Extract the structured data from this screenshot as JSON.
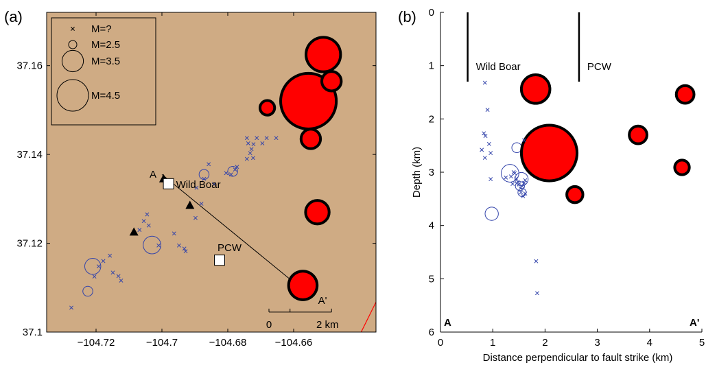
{
  "chart_data": [
    {
      "panel_label": "(a)",
      "type": "scatter",
      "title": "",
      "xlabel": "",
      "ylabel": "",
      "xlim": [
        -104.735,
        -104.635
      ],
      "ylim": [
        37.1,
        37.172
      ],
      "background_color": "#cfab84",
      "xticks": [
        -104.72,
        -104.7,
        -104.68,
        -104.66
      ],
      "xtick_labels": [
        "−104.72",
        "−104.7",
        "−104.68",
        "−104.66"
      ],
      "yticks": [
        37.1,
        37.12,
        37.14,
        37.16
      ],
      "ytick_labels": [
        "37.1",
        "37.12",
        "37.14",
        "37.16"
      ],
      "legend": {
        "placement": "top-left",
        "entries": [
          {
            "label": "M=?",
            "marker": "x"
          },
          {
            "label": "M=2.5",
            "marker": "circle",
            "magnitude": 2.5
          },
          {
            "label": "M=3.5",
            "marker": "circle",
            "magnitude": 3.5
          },
          {
            "label": "M=4.5",
            "marker": "circle",
            "magnitude": 4.5
          }
        ]
      },
      "wells": [
        {
          "label": "Wild Boar",
          "x": -104.698,
          "y": 37.1334
        },
        {
          "label": "PCW",
          "x": -104.6825,
          "y": 37.1162
        }
      ],
      "stations": [
        {
          "x": -104.7085,
          "y": 37.1225
        },
        {
          "x": -104.6995,
          "y": 37.1345
        },
        {
          "x": -104.6915,
          "y": 37.1285
        }
      ],
      "cross_section": {
        "start_label": "A",
        "end_label": "A'",
        "x": [
          -104.7,
          -104.6555
        ],
        "y": [
          37.1355,
          37.1085
        ]
      },
      "fault_trace": {
        "color": "#ff0000",
        "x": [
          -104.6395,
          -104.6345
        ],
        "y": [
          37.1,
          37.1075
        ]
      },
      "scale_bar": {
        "tick_labels": [
          "0",
          "2 km"
        ],
        "y": 37.1045,
        "x_start": -104.6675,
        "x_mid": -104.6611,
        "x_end": -104.6485
      },
      "series": [
        {
          "name": "M=?",
          "marker": "x",
          "color": "#3344aa",
          "points": [
            [
              -104.7275,
              37.1055
            ],
            [
              -104.7205,
              37.1125
            ],
            [
              -104.7192,
              37.1148
            ],
            [
              -104.7178,
              37.116
            ],
            [
              -104.7158,
              37.1172
            ],
            [
              -104.7149,
              37.1134
            ],
            [
              -104.7132,
              37.1126
            ],
            [
              -104.7124,
              37.1116
            ],
            [
              -104.7068,
              37.123
            ],
            [
              -104.7055,
              37.125
            ],
            [
              -104.7045,
              37.1265
            ],
            [
              -104.704,
              37.124
            ],
            [
              -104.701,
              37.1195
            ],
            [
              -104.6963,
              37.1222
            ],
            [
              -104.6948,
              37.1195
            ],
            [
              -104.6932,
              37.1188
            ],
            [
              -104.6928,
              37.1182
            ],
            [
              -104.6898,
              37.1257
            ],
            [
              -104.688,
              37.1289
            ],
            [
              -104.6895,
              37.1325
            ],
            [
              -104.6872,
              37.1345
            ],
            [
              -104.6858,
              37.1378
            ],
            [
              -104.6842,
              37.1333
            ],
            [
              -104.6805,
              37.1358
            ],
            [
              -104.679,
              37.1355
            ],
            [
              -104.6778,
              37.1366
            ],
            [
              -104.6772,
              37.1372
            ],
            [
              -104.6742,
              37.139
            ],
            [
              -104.6732,
              37.1403
            ],
            [
              -104.6728,
              37.1412
            ],
            [
              -104.6738,
              37.1425
            ],
            [
              -104.6722,
              37.1423
            ],
            [
              -104.6723,
              37.1392
            ],
            [
              -104.6695,
              37.1425
            ],
            [
              -104.6742,
              37.1437
            ],
            [
              -104.6712,
              37.1437
            ],
            [
              -104.6682,
              37.1437
            ],
            [
              -104.6653,
              37.1437
            ]
          ]
        },
        {
          "name": "small",
          "marker": "circle",
          "color": "#3344aa",
          "points": [
            [
              -104.721,
              37.1148,
              3.2
            ],
            [
              -104.703,
              37.1196,
              3.3
            ],
            [
              -104.7225,
              37.1092,
              2.7
            ],
            [
              -104.6872,
              37.1355,
              2.7
            ],
            [
              -104.6785,
              37.1362,
              2.7
            ]
          ]
        },
        {
          "name": "large",
          "marker": "filled-circle",
          "color": "#ff0000",
          "points": [
            [
              -104.651,
              37.1625,
              4.0
            ],
            [
              -104.6555,
              37.152,
              4.5
            ],
            [
              -104.6485,
              37.1565,
              3.4
            ],
            [
              -104.668,
              37.1505,
              3.1
            ],
            [
              -104.6548,
              37.1435,
              3.4
            ],
            [
              -104.6528,
              37.127,
              3.6
            ],
            [
              -104.6572,
              37.1105,
              3.8
            ]
          ]
        }
      ]
    },
    {
      "panel_label": "(b)",
      "type": "scatter",
      "title": "",
      "xlabel": "Distance perpendicular to fault strike (km)",
      "ylabel": "Depth (km)",
      "xlim": [
        0,
        5
      ],
      "ylim": [
        6,
        0
      ],
      "xticks": [
        0,
        1,
        2,
        3,
        4,
        5
      ],
      "xtick_labels": [
        "0",
        "1",
        "2",
        "3",
        "4",
        "5"
      ],
      "yticks": [
        0,
        1,
        2,
        3,
        4,
        5,
        6
      ],
      "ytick_labels": [
        "0",
        "1",
        "2",
        "3",
        "4",
        "5",
        "6"
      ],
      "corner_labels": [
        "A",
        "A'"
      ],
      "wells": [
        {
          "label": "Wild Boar",
          "x": 0.52,
          "depth_bottom": 1.3
        },
        {
          "label": "PCW",
          "x": 2.65,
          "depth_bottom": 1.3
        }
      ],
      "series": [
        {
          "name": "M=?",
          "marker": "x",
          "color": "#3344aa",
          "points": [
            [
              0.85,
              1.32
            ],
            [
              0.9,
              1.83
            ],
            [
              0.83,
              2.27
            ],
            [
              0.86,
              2.32
            ],
            [
              0.79,
              2.58
            ],
            [
              0.93,
              2.47
            ],
            [
              0.85,
              2.73
            ],
            [
              0.96,
              2.64
            ],
            [
              1.6,
              2.4
            ],
            [
              1.25,
              3.1
            ],
            [
              1.35,
              3.08
            ],
            [
              1.42,
              3.02
            ],
            [
              1.48,
              3.18
            ],
            [
              1.5,
              3.23
            ],
            [
              1.53,
              3.3
            ],
            [
              1.56,
              3.26
            ],
            [
              1.6,
              3.2
            ],
            [
              1.62,
              3.15
            ],
            [
              1.54,
              3.38
            ],
            [
              1.58,
              3.45
            ],
            [
              1.62,
              3.4
            ],
            [
              1.45,
              3.12
            ],
            [
              1.38,
              3.22
            ],
            [
              0.96,
              3.13
            ],
            [
              1.4,
              3.0
            ],
            [
              1.83,
              4.67
            ],
            [
              1.85,
              5.27
            ]
          ]
        },
        {
          "name": "small",
          "marker": "circle",
          "color": "#3344aa",
          "points": [
            [
              1.33,
              3.02,
              3.3
            ],
            [
              1.55,
              3.13,
              3.0
            ],
            [
              1.46,
              2.54,
              2.7
            ],
            [
              0.98,
              3.78,
              3.0
            ],
            [
              1.52,
              3.26,
              2.6
            ],
            [
              1.56,
              3.38,
              2.5
            ]
          ]
        },
        {
          "name": "large",
          "marker": "filled-circle",
          "color": "#ff0000",
          "points": [
            [
              1.82,
              1.44,
              3.8
            ],
            [
              2.08,
              2.64,
              4.5
            ],
            [
              4.68,
              1.54,
              3.3
            ],
            [
              3.78,
              2.3,
              3.3
            ],
            [
              4.62,
              2.91,
              3.1
            ],
            [
              2.57,
              3.42,
              3.2
            ]
          ]
        }
      ]
    }
  ]
}
